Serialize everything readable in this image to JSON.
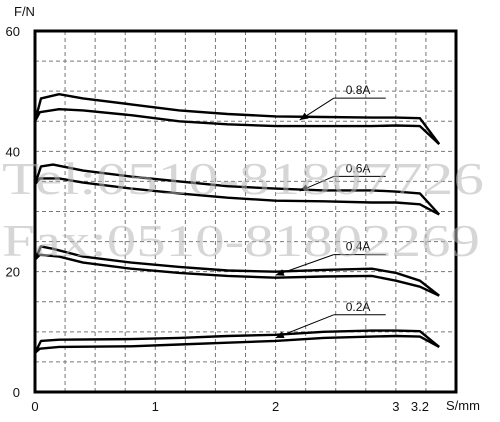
{
  "chart_data": {
    "type": "line",
    "xlabel": "S/mm",
    "ylabel": "F/N",
    "xlim": [
      0,
      3.5
    ],
    "ylim": [
      0,
      60
    ],
    "x_ticks": [
      "0",
      "1",
      "2",
      "3",
      "3.2"
    ],
    "y_ticks": [
      "0",
      "20",
      "40",
      "60"
    ],
    "grid": true,
    "series": [
      {
        "name": "0.8A",
        "upper": [
          [
            0,
            45
          ],
          [
            0.05,
            48.8
          ],
          [
            0.2,
            49.5
          ],
          [
            0.4,
            48.8
          ],
          [
            0.8,
            47.8
          ],
          [
            1.2,
            46.8
          ],
          [
            1.6,
            46.2
          ],
          [
            2.0,
            45.8
          ],
          [
            2.4,
            45.7
          ],
          [
            2.8,
            45.6
          ],
          [
            3.0,
            45.6
          ],
          [
            3.2,
            45.5
          ],
          [
            3.36,
            41.2
          ]
        ],
        "lower": [
          [
            0,
            45
          ],
          [
            0.04,
            46.5
          ],
          [
            0.2,
            47
          ],
          [
            0.4,
            46.8
          ],
          [
            0.8,
            46
          ],
          [
            1.2,
            45
          ],
          [
            1.6,
            44.5
          ],
          [
            2.0,
            44.2
          ],
          [
            2.4,
            44.2
          ],
          [
            2.8,
            44.2
          ],
          [
            3.0,
            44.3
          ],
          [
            3.2,
            44.2
          ],
          [
            3.36,
            41.2
          ]
        ]
      },
      {
        "name": "0.6A",
        "upper": [
          [
            0,
            34.5
          ],
          [
            0.05,
            37.5
          ],
          [
            0.15,
            37.8
          ],
          [
            0.4,
            36.8
          ],
          [
            0.8,
            35.8
          ],
          [
            1.2,
            35
          ],
          [
            1.6,
            34.2
          ],
          [
            2.0,
            33.8
          ],
          [
            2.4,
            33.5
          ],
          [
            2.8,
            33.5
          ],
          [
            3.0,
            33.3
          ],
          [
            3.2,
            33
          ],
          [
            3.36,
            29.5
          ]
        ],
        "lower": [
          [
            0,
            34.5
          ],
          [
            0.04,
            35.5
          ],
          [
            0.2,
            35.5
          ],
          [
            0.4,
            34.8
          ],
          [
            0.8,
            33.8
          ],
          [
            1.2,
            33
          ],
          [
            1.6,
            32.3
          ],
          [
            2.0,
            31.8
          ],
          [
            2.4,
            31.7
          ],
          [
            2.8,
            31.5
          ],
          [
            3.0,
            31.5
          ],
          [
            3.2,
            31.2
          ],
          [
            3.36,
            29.5
          ]
        ]
      },
      {
        "name": "0.4A",
        "upper": [
          [
            0,
            22
          ],
          [
            0.05,
            24.2
          ],
          [
            0.15,
            23.8
          ],
          [
            0.4,
            22.5
          ],
          [
            0.8,
            21.5
          ],
          [
            1.2,
            20.8
          ],
          [
            1.6,
            20.2
          ],
          [
            2.0,
            20
          ],
          [
            2.4,
            20.3
          ],
          [
            2.8,
            20.5
          ],
          [
            3.0,
            19.8
          ],
          [
            3.2,
            18.5
          ],
          [
            3.36,
            16
          ]
        ],
        "lower": [
          [
            0,
            22
          ],
          [
            0.04,
            22.8
          ],
          [
            0.2,
            22.5
          ],
          [
            0.4,
            21.5
          ],
          [
            0.8,
            20.5
          ],
          [
            1.2,
            19.8
          ],
          [
            1.6,
            19.3
          ],
          [
            2.0,
            19.0
          ],
          [
            2.4,
            19.2
          ],
          [
            2.8,
            19.3
          ],
          [
            3.0,
            18.5
          ],
          [
            3.2,
            17.5
          ],
          [
            3.36,
            16
          ]
        ]
      },
      {
        "name": "0.2A",
        "upper": [
          [
            0,
            6.5
          ],
          [
            0.05,
            8.5
          ],
          [
            0.2,
            8.7
          ],
          [
            0.8,
            8.8
          ],
          [
            1.2,
            9
          ],
          [
            1.6,
            9.3
          ],
          [
            2.0,
            9.5
          ],
          [
            2.4,
            10
          ],
          [
            2.8,
            10.2
          ],
          [
            3.0,
            10.2
          ],
          [
            3.2,
            10.1
          ],
          [
            3.36,
            7.5
          ]
        ],
        "lower": [
          [
            0,
            6.5
          ],
          [
            0.04,
            7.2
          ],
          [
            0.2,
            7.5
          ],
          [
            0.8,
            7.6
          ],
          [
            1.2,
            7.9
          ],
          [
            1.6,
            8.2
          ],
          [
            2.0,
            8.5
          ],
          [
            2.4,
            9
          ],
          [
            2.8,
            9.2
          ],
          [
            3.0,
            9.3
          ],
          [
            3.2,
            9.2
          ],
          [
            3.36,
            7.5
          ]
        ]
      }
    ],
    "label_positions": [
      {
        "name": "0.8A",
        "text_at": [
          2.55,
          49
        ],
        "arrow_to": [
          2.2,
          45.2
        ]
      },
      {
        "name": "0.6A",
        "text_at": [
          2.55,
          36
        ],
        "arrow_to": [
          2.2,
          33.4
        ]
      },
      {
        "name": "0.4A",
        "text_at": [
          2.55,
          23
        ],
        "arrow_to": [
          2.0,
          19.4
        ]
      },
      {
        "name": "0.2A",
        "text_at": [
          2.55,
          13
        ],
        "arrow_to": [
          2.0,
          9
        ]
      }
    ]
  },
  "watermark": {
    "line1": "Tel:0510-81807726",
    "line2": "Fax:0510-81802269"
  }
}
